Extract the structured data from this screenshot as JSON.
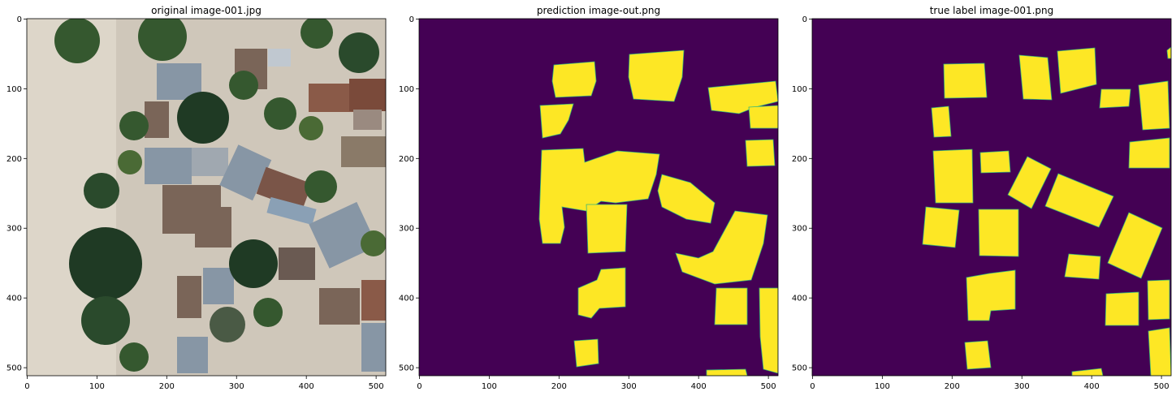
{
  "figure": {
    "panels": [
      {
        "title": "original image-001.jpg",
        "content": "aerial-photo",
        "x_ticks": [
          "0",
          "100",
          "200",
          "300",
          "400",
          "500"
        ],
        "y_ticks": [
          "0",
          "100",
          "200",
          "300",
          "400",
          "500"
        ]
      },
      {
        "title": "prediction image-out.png",
        "content": "predicted-mask",
        "x_ticks": [
          "0",
          "100",
          "200",
          "300",
          "400",
          "500"
        ],
        "y_ticks": [
          "0",
          "100",
          "200",
          "300",
          "400",
          "500"
        ]
      },
      {
        "title": "true label image-001.png",
        "content": "ground-truth-mask",
        "x_ticks": [
          "0",
          "100",
          "200",
          "300",
          "400",
          "500"
        ],
        "y_ticks": [
          "0",
          "100",
          "200",
          "300",
          "400",
          "500"
        ]
      }
    ],
    "colors": {
      "mask_background": "#440154",
      "mask_foreground": "#fde725",
      "mask_edge": "#35b779",
      "sand": "#cfc7ba",
      "sand_light": "#ddd6c9",
      "tree_dark": "#1f3a24",
      "tree_mid": "#35582f",
      "roof_metal": "#8796a5",
      "roof_rust": "#7a6558"
    }
  }
}
